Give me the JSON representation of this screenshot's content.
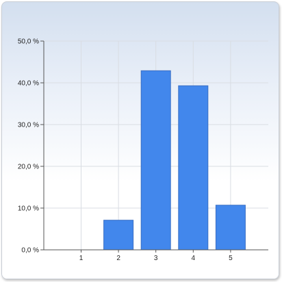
{
  "chart_data": {
    "type": "bar",
    "categories": [
      "1",
      "2",
      "3",
      "4",
      "5"
    ],
    "values": [
      0.0,
      7.1,
      42.9,
      39.3,
      10.7
    ],
    "y_ticks": [
      "0,0 %",
      "10,0 %",
      "20,0 %",
      "30,0 %",
      "40,0 %",
      "50,0 %"
    ],
    "ylim": [
      0,
      50
    ],
    "grid": true,
    "colors": {
      "bar": "#4287ec",
      "bar_edge": "#3a6fc4",
      "grid": "#d9dde3",
      "axis": "#555555"
    }
  }
}
